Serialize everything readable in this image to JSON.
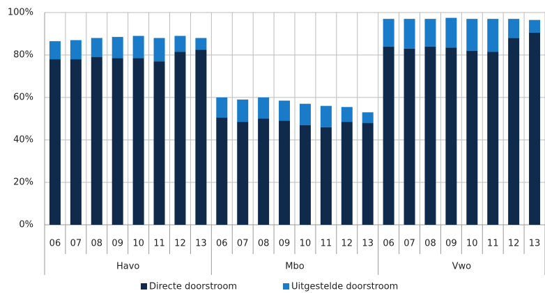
{
  "chart_data": {
    "type": "stacked_bar",
    "categories": [
      "06",
      "07",
      "08",
      "09",
      "10",
      "11",
      "12",
      "13",
      "06",
      "07",
      "08",
      "09",
      "10",
      "11",
      "12",
      "13",
      "06",
      "07",
      "08",
      "09",
      "10",
      "11",
      "12",
      "13"
    ],
    "groups": [
      "Havo",
      "Mbo",
      "Vwo"
    ],
    "series": [
      {
        "name": "Directe doorstroom",
        "color": "#102a4c",
        "values": [
          78,
          78,
          79,
          78.5,
          78.5,
          77,
          81.5,
          82.5,
          50.5,
          48.5,
          50,
          49,
          47,
          46,
          48.5,
          48,
          84,
          83,
          84,
          83.5,
          82,
          81.5,
          88,
          90.5
        ]
      },
      {
        "name": "Uitgestelde doorstroom",
        "color": "#1a7cc8",
        "values": [
          8.5,
          9,
          9,
          10,
          10.5,
          11,
          7.5,
          5.5,
          9.5,
          10.5,
          10,
          9.5,
          10,
          10,
          7,
          5,
          13,
          14,
          13,
          14,
          15,
          15.5,
          9,
          6
        ]
      }
    ],
    "ylim": [
      0,
      100
    ],
    "yticks": [
      {
        "value": 0,
        "label": "0%"
      },
      {
        "value": 20,
        "label": "20%"
      },
      {
        "value": 40,
        "label": "40%"
      },
      {
        "value": 60,
        "label": "60%"
      },
      {
        "value": 80,
        "label": "80%"
      },
      {
        "value": 100,
        "label": "100%"
      }
    ],
    "grid": true
  }
}
